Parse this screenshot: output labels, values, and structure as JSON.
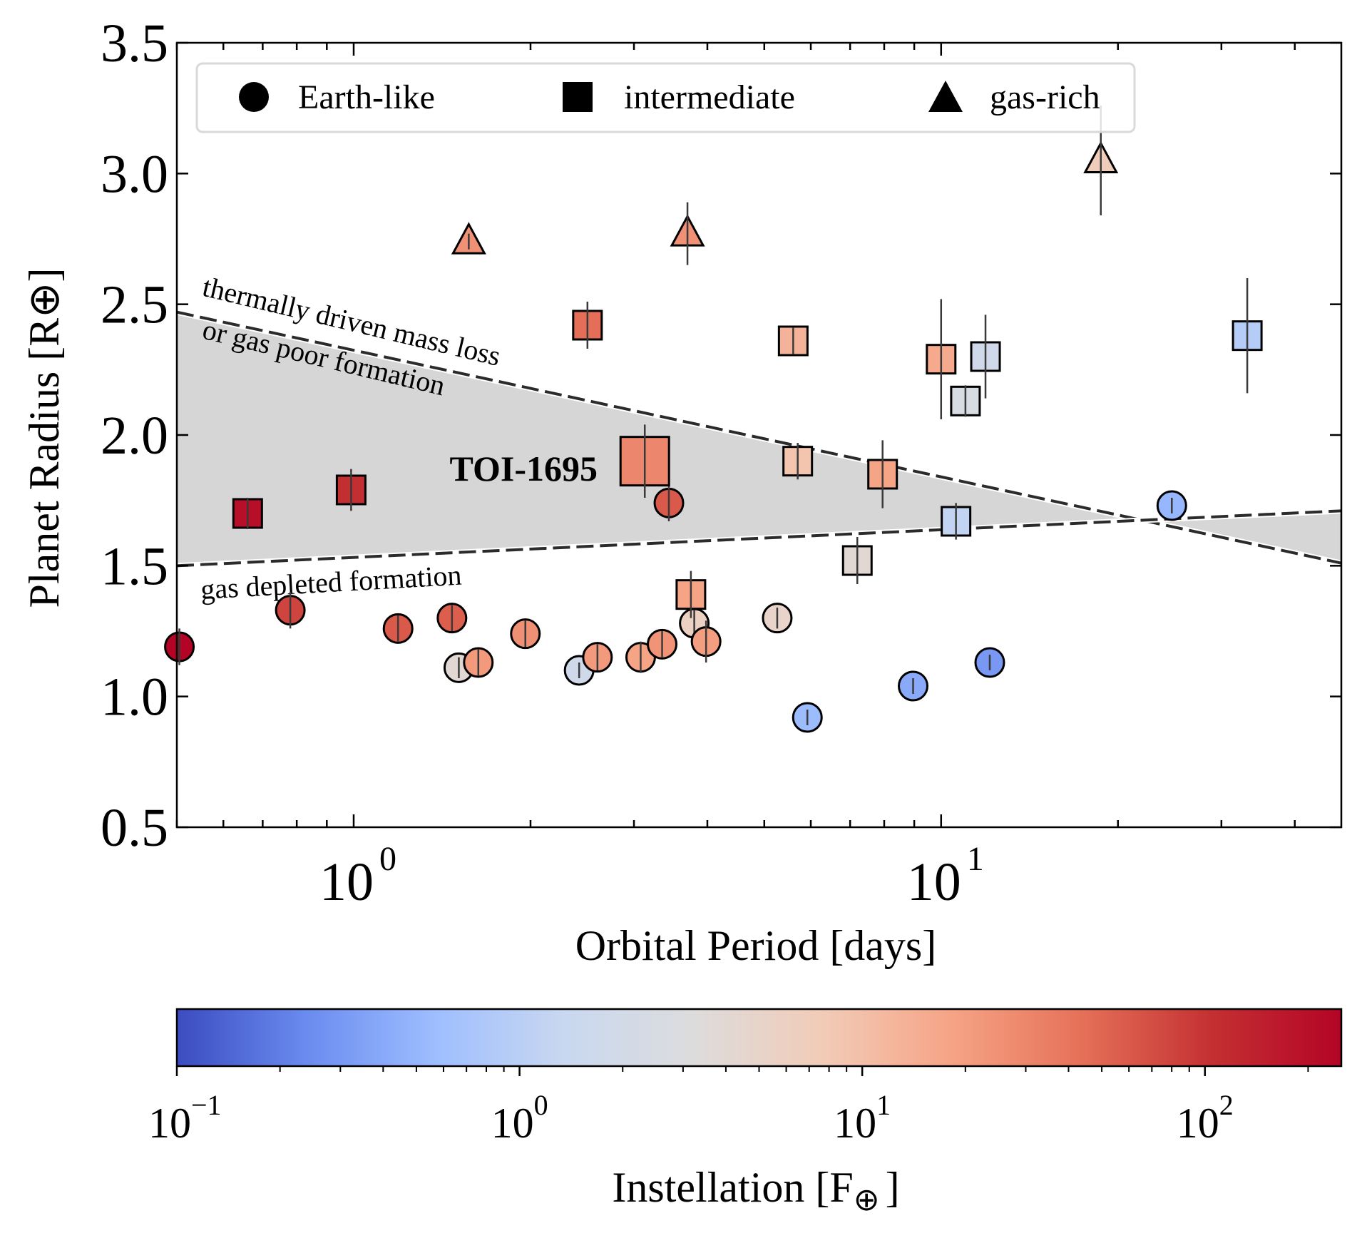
{
  "chart_data": {
    "type": "scatter",
    "xlabel": "Orbital Period [days]",
    "ylabel": "Planet Radius [R⊕]",
    "x_scale": "log",
    "xlim": [
      0.5,
      48
    ],
    "ylim": [
      0.5,
      3.5
    ],
    "x_ticks": [
      {
        "value": 1,
        "base": "10",
        "exp": "0"
      },
      {
        "value": 10,
        "base": "10",
        "exp": "1"
      }
    ],
    "y_ticks": [
      "0.5",
      "1.0",
      "1.5",
      "2.0",
      "2.5",
      "3.0",
      "3.5"
    ],
    "grid": false,
    "legend": {
      "placement": "top",
      "entries": [
        {
          "marker": "circle",
          "label": "Earth-like"
        },
        {
          "marker": "square",
          "label": "intermediate"
        },
        {
          "marker": "triangle",
          "label": "gas-rich"
        }
      ]
    },
    "colormap": {
      "name": "coolwarm",
      "label": "Instellation [F⊕]",
      "label_main": "Instellation [F",
      "label_symbol": "⊕",
      "label_end": "]",
      "scale": "log",
      "range": [
        0.1,
        250
      ],
      "ticks": [
        {
          "value": 0.1,
          "base": "10",
          "exp": "−1"
        },
        {
          "value": 1,
          "base": "10",
          "exp": "0"
        },
        {
          "value": 10,
          "base": "10",
          "exp": "1"
        },
        {
          "value": 100,
          "base": "10",
          "exp": "2"
        }
      ],
      "stops": [
        "#3b4cc0",
        "#6a8bef",
        "#9ebeff",
        "#c9d8f0",
        "#dddcdc",
        "#f2cbb7",
        "#f6a385",
        "#e57058",
        "#c43032",
        "#b40426"
      ]
    },
    "boundary_lines": [
      {
        "label": "thermally driven mass loss",
        "label_line2": "or gas poor formation",
        "points": [
          [
            0.5,
            2.47
          ],
          [
            48,
            1.51
          ]
        ]
      },
      {
        "label": "gas depleted formation",
        "points": [
          [
            0.5,
            1.5
          ],
          [
            48,
            1.71
          ]
        ]
      }
    ],
    "highlight": {
      "label": "TOI-1695",
      "period": 3.13,
      "radius": 1.9,
      "instellation": 30
    },
    "planets": [
      {
        "marker": "circle",
        "period": 0.505,
        "radius": 1.19,
        "rerr": 0.07,
        "instellation": 250
      },
      {
        "marker": "circle",
        "period": 0.78,
        "radius": 1.33,
        "rerr": 0.07,
        "instellation": 80
      },
      {
        "marker": "circle",
        "period": 1.19,
        "radius": 1.26,
        "rerr": 0.05,
        "instellation": 60
      },
      {
        "marker": "circle",
        "period": 1.47,
        "radius": 1.3,
        "rerr": 0.05,
        "instellation": 55
      },
      {
        "marker": "circle",
        "period": 1.51,
        "radius": 1.11,
        "rerr": 0.04,
        "instellation": 4
      },
      {
        "marker": "circle",
        "period": 1.63,
        "radius": 1.13,
        "rerr": 0.05,
        "instellation": 22
      },
      {
        "marker": "circle",
        "period": 1.96,
        "radius": 1.24,
        "rerr": 0.05,
        "instellation": 26
      },
      {
        "marker": "circle",
        "period": 2.42,
        "radius": 1.1,
        "rerr": 0.03,
        "instellation": 1.8
      },
      {
        "marker": "circle",
        "period": 2.6,
        "radius": 1.15,
        "rerr": 0.05,
        "instellation": 22
      },
      {
        "marker": "circle",
        "period": 3.08,
        "radius": 1.15,
        "rerr": 0.06,
        "instellation": 18
      },
      {
        "marker": "circle",
        "period": 3.35,
        "radius": 1.2,
        "rerr": 0.05,
        "instellation": 24
      },
      {
        "marker": "circle",
        "period": 3.44,
        "radius": 1.74,
        "rerr": 0.07,
        "instellation": 60
      },
      {
        "marker": "circle",
        "period": 3.8,
        "radius": 1.28,
        "rerr": 0.06,
        "instellation": 6
      },
      {
        "marker": "circle",
        "period": 3.98,
        "radius": 1.21,
        "rerr": 0.08,
        "instellation": 20
      },
      {
        "marker": "circle",
        "period": 5.26,
        "radius": 1.3,
        "rerr": 0.04,
        "instellation": 5
      },
      {
        "marker": "circle",
        "period": 5.92,
        "radius": 0.92,
        "rerr": 0.03,
        "instellation": 0.55
      },
      {
        "marker": "circle",
        "period": 8.96,
        "radius": 1.04,
        "rerr": 0.03,
        "instellation": 0.4
      },
      {
        "marker": "circle",
        "period": 12.1,
        "radius": 1.13,
        "rerr": 0.03,
        "instellation": 0.3
      },
      {
        "marker": "circle",
        "period": 24.7,
        "radius": 1.73,
        "rerr": 0.03,
        "instellation": 0.5
      },
      {
        "marker": "square",
        "period": 0.66,
        "radius": 1.7,
        "rerr": 0.06,
        "instellation": 200
      },
      {
        "marker": "square",
        "period": 0.99,
        "radius": 1.79,
        "rerr": 0.08,
        "instellation": 110
      },
      {
        "marker": "square",
        "period": 2.5,
        "radius": 2.42,
        "rerr": 0.09,
        "instellation": 45
      },
      {
        "marker": "square",
        "period": 3.75,
        "radius": 1.39,
        "rerr": 0.09,
        "instellation": 18
      },
      {
        "marker": "square",
        "period": 5.6,
        "radius": 2.36,
        "rerr": 0.05,
        "instellation": 13
      },
      {
        "marker": "square",
        "period": 5.7,
        "radius": 1.9,
        "rerr": 0.07,
        "instellation": 9
      },
      {
        "marker": "square",
        "period": 7.2,
        "radius": 1.52,
        "rerr": 0.09,
        "instellation": 4
      },
      {
        "marker": "square",
        "period": 7.95,
        "radius": 1.85,
        "rerr": 0.13,
        "instellation": 18
      },
      {
        "marker": "square",
        "period": 10.0,
        "radius": 2.29,
        "rerr": 0.23,
        "instellation": 16
      },
      {
        "marker": "square",
        "period": 10.6,
        "radius": 1.67,
        "rerr": 0.07,
        "instellation": 1.2
      },
      {
        "marker": "square",
        "period": 11.0,
        "radius": 2.13,
        "rerr": 0.06,
        "instellation": 2.5
      },
      {
        "marker": "square",
        "period": 11.9,
        "radius": 2.3,
        "rerr": 0.16,
        "instellation": 1.8
      },
      {
        "marker": "square",
        "period": 33.2,
        "radius": 2.38,
        "rerr": 0.22,
        "instellation": 0.9
      },
      {
        "marker": "triangle",
        "period": 1.57,
        "radius": 2.74,
        "rerr": 0.03,
        "instellation": 25
      },
      {
        "marker": "triangle",
        "period": 3.7,
        "radius": 2.77,
        "rerr": 0.12,
        "instellation": 25
      },
      {
        "marker": "triangle",
        "period": 18.7,
        "radius": 3.05,
        "rerr": 0.21,
        "instellation": 7
      }
    ]
  }
}
